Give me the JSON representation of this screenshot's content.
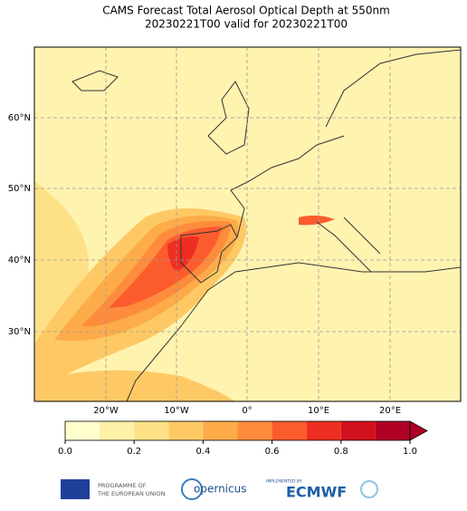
{
  "header": {
    "title": "CAMS Forecast Total Aerosol Optical Depth at 550nm",
    "subtitle": "20230221T00 valid for 20230221T00"
  },
  "map": {
    "lat_labels": [
      "60°N",
      "50°N",
      "40°N",
      "30°N"
    ],
    "lon_labels": [
      "20°W",
      "10°W",
      "0°",
      "10°E",
      "20°E"
    ]
  },
  "colorbar": {
    "lim": [
      0,
      1
    ],
    "boundaries": [
      0,
      0.1,
      0.2,
      0.3,
      0.4,
      0.5,
      0.6,
      0.7,
      0.8,
      0.9,
      1.0
    ],
    "colors": [
      "#ffffcc",
      "#fff1a8",
      "#fee187",
      "#fec965",
      "#feab4a",
      "#fd8c3c",
      "#fc5b2e",
      "#ed2e21",
      "#d1121e",
      "#b10026"
    ],
    "extend_color": "#b10026",
    "ticks": [
      {
        "value": 0,
        "label": "0.0"
      },
      0.2,
      0.4,
      0.6,
      0.8,
      {
        "value": 1,
        "label": "1.0"
      }
    ]
  },
  "footer": {
    "eu_line1": "PROGRAMME OF",
    "eu_line2": "THE EUROPEAN UNION",
    "copernicus": "opernicus",
    "implemented": "IMPLEMENTED BY",
    "ecmwf": "ECMWF"
  }
}
